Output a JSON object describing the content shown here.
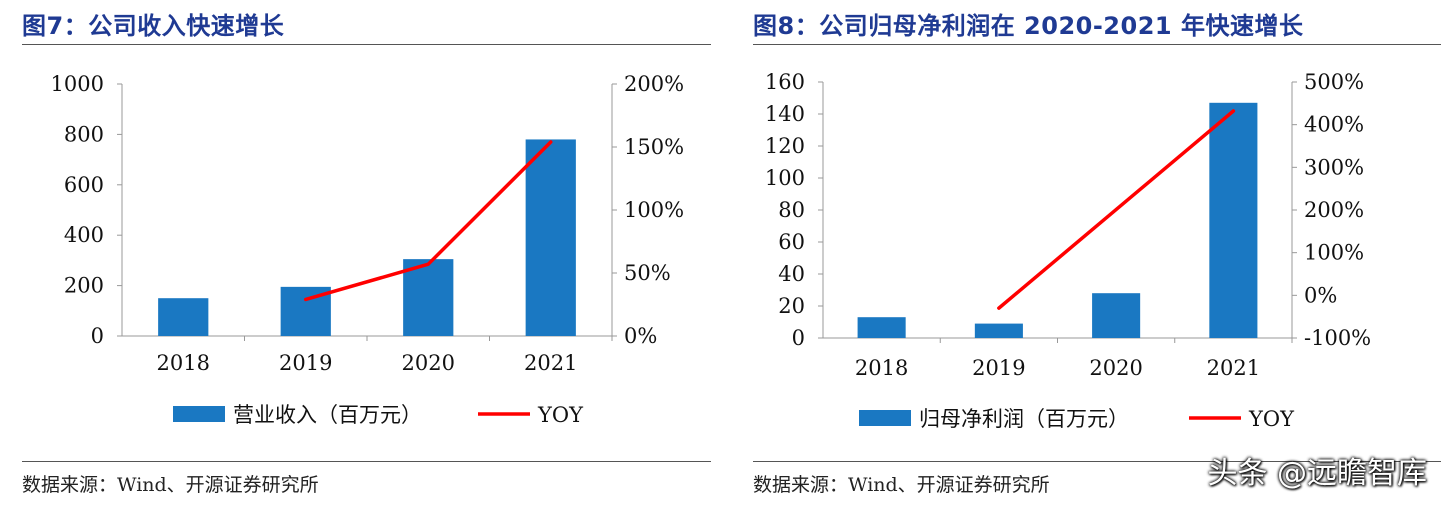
{
  "left": {
    "title": "图7：公司收入快速增长",
    "source": "数据来源：Wind、开源证券研究所"
  },
  "right": {
    "title": "图8：公司归母净利润在 2020-2021 年快速增长",
    "source": "数据来源：Wind、开源证券研究所"
  },
  "watermark": "头条 @远瞻智库",
  "chart_data": [
    {
      "type": "bar",
      "categories": [
        "2018",
        "2019",
        "2020",
        "2021"
      ],
      "series": [
        {
          "name": "营业收入（百万元）",
          "axis": "left",
          "kind": "bar",
          "color": "#1a78c2",
          "values": [
            150,
            195,
            305,
            780
          ]
        },
        {
          "name": "YOY",
          "axis": "right",
          "kind": "line",
          "color": "#ff0000",
          "values": [
            null,
            29,
            57,
            154
          ]
        }
      ],
      "yleft": {
        "lim": [
          0,
          1000
        ],
        "ticks": [
          "0",
          "200",
          "400",
          "600",
          "800",
          "1000"
        ]
      },
      "yright": {
        "lim": [
          0,
          200
        ],
        "ticks": [
          "0%",
          "50%",
          "100%",
          "150%",
          "200%"
        ]
      },
      "legend": "bottom",
      "grid": false
    },
    {
      "type": "bar",
      "categories": [
        "2018",
        "2019",
        "2020",
        "2021"
      ],
      "series": [
        {
          "name": "归母净利润（百万元）",
          "axis": "left",
          "kind": "bar",
          "color": "#1a78c2",
          "values": [
            13,
            9,
            28,
            147
          ]
        },
        {
          "name": "YOY",
          "axis": "right",
          "kind": "line",
          "color": "#ff0000",
          "values": [
            null,
            -30,
            null,
            432
          ]
        }
      ],
      "yleft": {
        "lim": [
          0,
          160
        ],
        "ticks": [
          "0",
          "20",
          "40",
          "60",
          "80",
          "100",
          "120",
          "140",
          "160"
        ]
      },
      "yright": {
        "lim": [
          -100,
          500
        ],
        "ticks": [
          "-100%",
          "0%",
          "100%",
          "200%",
          "300%",
          "400%",
          "500%"
        ]
      },
      "legend": "bottom",
      "grid": false
    }
  ]
}
